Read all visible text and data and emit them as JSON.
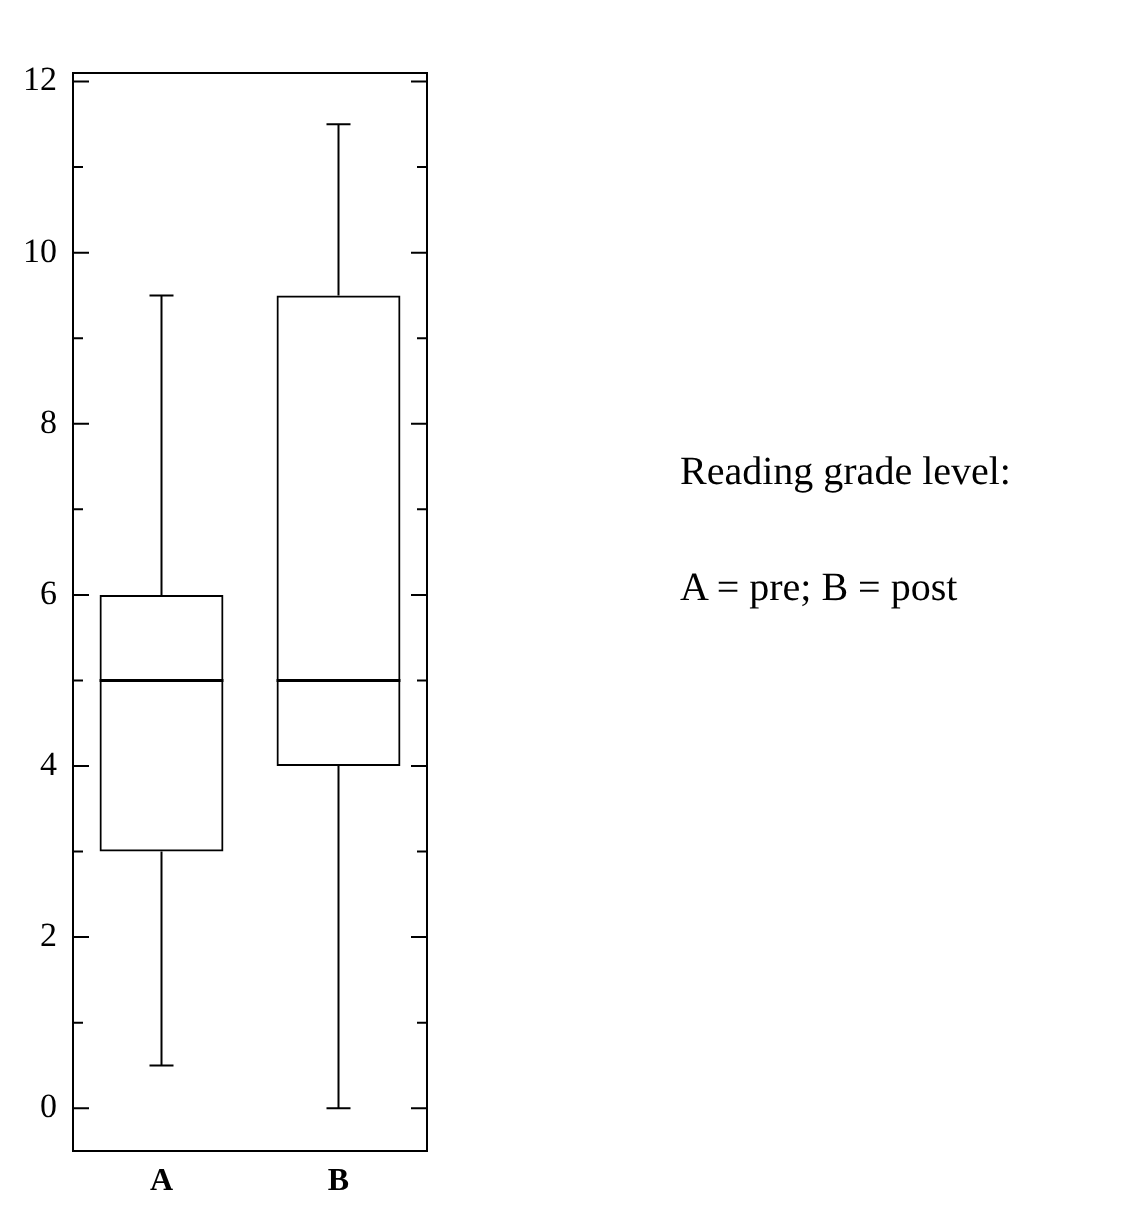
{
  "chart_data": {
    "type": "box",
    "categories": [
      "A",
      "B"
    ],
    "boxes": [
      {
        "low": 0.5,
        "q1": 3,
        "median": 5,
        "q3": 6,
        "high": 9.5
      },
      {
        "low": 0,
        "q1": 4,
        "median": 5,
        "q3": 9.5,
        "high": 11.5
      }
    ],
    "color": "#000000",
    "ylim": [
      -0.5,
      12.1
    ],
    "yticks": [
      0,
      {
        "value": 1,
        "label": null
      },
      2,
      {
        "value": 3,
        "label": null
      },
      4,
      {
        "value": 5,
        "label": null
      },
      6,
      {
        "value": 7,
        "label": null
      },
      8,
      {
        "value": 9,
        "label": null
      },
      10,
      {
        "value": 11,
        "label": null
      },
      12
    ],
    "grid": false,
    "legend": false,
    "annotations": [
      "Reading grade level:",
      "A = pre; B = post"
    ]
  }
}
